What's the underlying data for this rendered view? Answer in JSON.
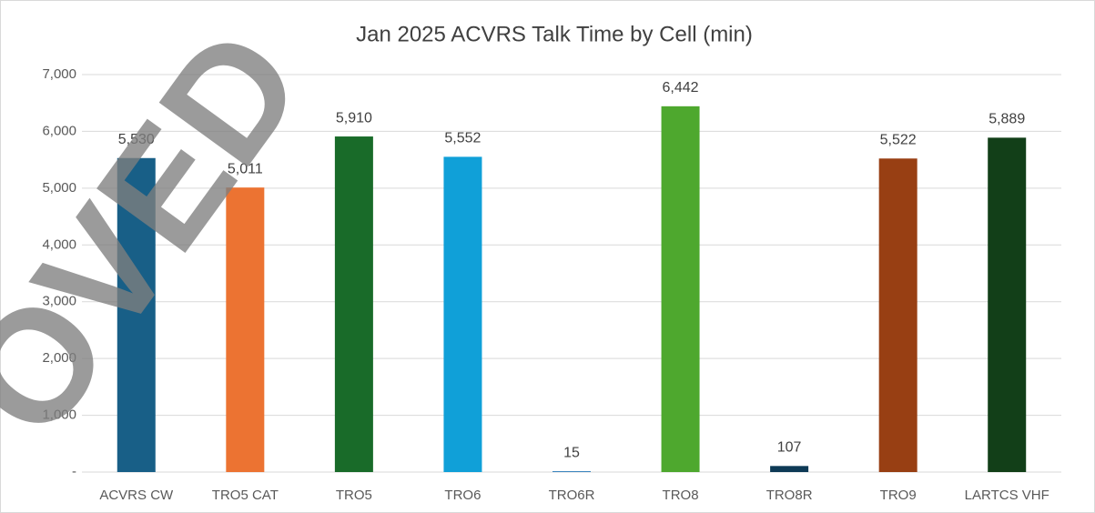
{
  "chart_data": {
    "type": "bar",
    "title": "Jan  2025 ACVRS Talk Time by Cell (min)",
    "categories": [
      "ACVRS CW",
      "TRO5 CAT",
      "TRO5",
      "TRO6",
      "TRO6R",
      "TRO8",
      "TRO8R",
      "TRO9",
      "LARTCS VHF"
    ],
    "values": [
      5530,
      5011,
      5910,
      5552,
      15,
      6442,
      107,
      5522,
      5889
    ],
    "value_labels": [
      "5,530",
      "5,011",
      "5,910",
      "5,552",
      "15",
      "6,442",
      "107",
      "5,522",
      "5,889"
    ],
    "colors": [
      "#185f87",
      "#ec7332",
      "#196b29",
      "#10a0d8",
      "#2b7bb9",
      "#4ea82e",
      "#0e3a56",
      "#983f13",
      "#123f18"
    ],
    "ylim": [
      0,
      7000
    ],
    "yticks": [
      {
        "value": 0,
        "label": "-"
      },
      {
        "value": 1000,
        "label": "1,000"
      },
      {
        "value": 2000,
        "label": "2,000"
      },
      {
        "value": 3000,
        "label": "3,000"
      },
      {
        "value": 4000,
        "label": "4,000"
      },
      {
        "value": 5000,
        "label": "5,000"
      },
      {
        "value": 6000,
        "label": "6,000"
      },
      {
        "value": 7000,
        "label": "7,000"
      }
    ],
    "grid": true,
    "watermark": "OVED"
  }
}
